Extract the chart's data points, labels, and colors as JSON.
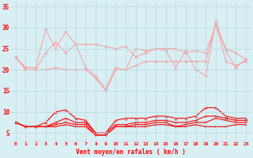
{
  "x": [
    0,
    1,
    2,
    3,
    4,
    5,
    6,
    7,
    8,
    9,
    10,
    11,
    12,
    13,
    14,
    15,
    16,
    17,
    18,
    19,
    20,
    21,
    22,
    23
  ],
  "rafales_line": [
    23,
    20.5,
    20.5,
    29.5,
    25,
    29,
    26,
    20.5,
    18.5,
    15.5,
    20.5,
    20,
    25,
    24.5,
    25,
    24.5,
    20.5,
    24.5,
    20,
    18.5,
    31.5,
    24.5,
    20.5,
    22.5
  ],
  "moyen_line1": [
    23,
    20,
    20,
    24,
    26.5,
    24,
    26,
    26,
    26,
    25.5,
    25,
    25.5,
    23,
    24,
    25,
    25,
    25,
    24,
    24.5,
    24,
    30.5,
    25,
    24,
    22.5
  ],
  "moyen_line2": [
    23,
    20,
    20,
    20,
    20.5,
    20,
    20,
    20,
    18,
    15,
    20,
    20,
    21,
    22,
    22,
    22,
    22,
    22,
    22,
    22,
    31,
    22,
    21,
    22
  ],
  "wind_max": [
    7.5,
    6.5,
    6.5,
    7.5,
    10,
    10.5,
    8.5,
    8,
    5,
    5,
    8,
    8.5,
    8.5,
    8.5,
    9,
    9,
    8.5,
    8.5,
    9,
    11,
    11,
    9,
    8.5,
    8.5
  ],
  "wind_mean": [
    7.5,
    6.5,
    6.5,
    6.5,
    7.5,
    8.5,
    7.5,
    7.5,
    5,
    5,
    7,
    7,
    7.5,
    7.5,
    8,
    8,
    7.5,
    7.5,
    8,
    9,
    9,
    8.5,
    8,
    8
  ],
  "wind_min": [
    7.5,
    6.5,
    6.5,
    6.5,
    7,
    7.5,
    7,
    7,
    4.5,
    4.5,
    6.5,
    6.5,
    7,
    7,
    7.5,
    7.5,
    6.5,
    7,
    7.5,
    7.5,
    8.5,
    8,
    7.5,
    7.5
  ],
  "wind_low": [
    7.5,
    6.5,
    6.5,
    6.5,
    6.5,
    7,
    6.5,
    6.5,
    4.5,
    4.5,
    6.5,
    6.5,
    6.5,
    6.5,
    7,
    7,
    6.5,
    6.5,
    7,
    6.5,
    6.5,
    6.5,
    7,
    7
  ],
  "bg_color": "#d8eff4",
  "grid_color": "#b8d8df",
  "line_color_dark": "#ff0000",
  "line_color_light": "#ff9999",
  "xlabel": "Vent moyen/en rafales ( km/h )",
  "ylim": [
    3,
    36
  ],
  "yticks": [
    5,
    10,
    15,
    20,
    25,
    30,
    35
  ],
  "xlim": [
    -0.5,
    23.5
  ]
}
